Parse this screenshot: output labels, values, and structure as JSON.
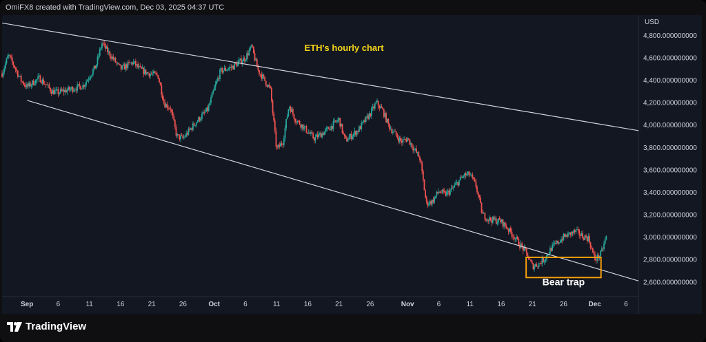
{
  "header": {
    "credit": "OmiFX8 created with TradingView.com, Dec 03, 2025 04:37 UTC"
  },
  "footer": {
    "brand": "TradingView"
  },
  "colors": {
    "background": "#131722",
    "up": "#26a69a",
    "down": "#ef5350",
    "title": "#f5d417",
    "trendline": "#d1d4dc",
    "box": "#f59e0b",
    "axis_text": "#d1d4dc"
  },
  "chart_data": {
    "type": "candlestick",
    "title": "ETH's hourly chart",
    "currency": "USD",
    "y_ticks": [
      4800,
      4600,
      4400,
      4200,
      4000,
      3800,
      3600,
      3400,
      3200,
      3000,
      2800,
      2600
    ],
    "y_tick_labels": [
      "4,800.000000000",
      "4,600.000000000",
      "4,400.000000000",
      "4,200.000000000",
      "4,000.000000000",
      "3,800.000000000",
      "3,600.000000000",
      "3,400.000000000",
      "3,200.000000000",
      "3,000.000000000",
      "2,800.000000000",
      "2,600.000000000"
    ],
    "ylim": [
      2470,
      4980
    ],
    "xlim": [
      "2025-08-28",
      "2025-12-08"
    ],
    "x_ticks": [
      {
        "date": "2025-09-01",
        "label": "Sep",
        "bold": true
      },
      {
        "date": "2025-09-06",
        "label": "6"
      },
      {
        "date": "2025-09-11",
        "label": "11"
      },
      {
        "date": "2025-09-16",
        "label": "16"
      },
      {
        "date": "2025-09-21",
        "label": "21"
      },
      {
        "date": "2025-09-26",
        "label": "26"
      },
      {
        "date": "2025-10-01",
        "label": "Oct",
        "bold": true
      },
      {
        "date": "2025-10-06",
        "label": "6"
      },
      {
        "date": "2025-10-11",
        "label": "11"
      },
      {
        "date": "2025-10-16",
        "label": "16"
      },
      {
        "date": "2025-10-21",
        "label": "21"
      },
      {
        "date": "2025-10-26",
        "label": "26"
      },
      {
        "date": "2025-11-01",
        "label": "Nov",
        "bold": true
      },
      {
        "date": "2025-11-06",
        "label": "6"
      },
      {
        "date": "2025-11-11",
        "label": "11"
      },
      {
        "date": "2025-11-16",
        "label": "16"
      },
      {
        "date": "2025-11-21",
        "label": "21"
      },
      {
        "date": "2025-11-26",
        "label": "26"
      },
      {
        "date": "2025-12-01",
        "label": "Dec",
        "bold": true
      },
      {
        "date": "2025-12-06",
        "label": "6"
      }
    ],
    "price_path": [
      [
        "2025-08-28",
        4460
      ],
      [
        "2025-08-29",
        4620
      ],
      [
        "2025-08-30",
        4520
      ],
      [
        "2025-08-31",
        4400
      ],
      [
        "2025-09-01",
        4340
      ],
      [
        "2025-09-03",
        4420
      ],
      [
        "2025-09-05",
        4300
      ],
      [
        "2025-09-06",
        4290
      ],
      [
        "2025-09-08",
        4320
      ],
      [
        "2025-09-10",
        4350
      ],
      [
        "2025-09-12",
        4520
      ],
      [
        "2025-09-13",
        4730
      ],
      [
        "2025-09-14",
        4650
      ],
      [
        "2025-09-16",
        4500
      ],
      [
        "2025-09-18",
        4560
      ],
      [
        "2025-09-19",
        4500
      ],
      [
        "2025-09-20",
        4470
      ],
      [
        "2025-09-22",
        4440
      ],
      [
        "2025-09-23",
        4190
      ],
      [
        "2025-09-24",
        4150
      ],
      [
        "2025-09-25",
        3900
      ],
      [
        "2025-09-26",
        3880
      ],
      [
        "2025-09-28",
        4020
      ],
      [
        "2025-09-30",
        4140
      ],
      [
        "2025-10-01",
        4320
      ],
      [
        "2025-10-02",
        4480
      ],
      [
        "2025-10-04",
        4520
      ],
      [
        "2025-10-06",
        4600
      ],
      [
        "2025-10-07",
        4700
      ],
      [
        "2025-10-08",
        4490
      ],
      [
        "2025-10-10",
        4320
      ],
      [
        "2025-10-11",
        3780
      ],
      [
        "2025-10-12",
        3850
      ],
      [
        "2025-10-13",
        4180
      ],
      [
        "2025-10-14",
        4050
      ],
      [
        "2025-10-15",
        4000
      ],
      [
        "2025-10-17",
        3880
      ],
      [
        "2025-10-19",
        3950
      ],
      [
        "2025-10-21",
        4050
      ],
      [
        "2025-10-22",
        3860
      ],
      [
        "2025-10-24",
        3950
      ],
      [
        "2025-10-26",
        4100
      ],
      [
        "2025-10-27",
        4200
      ],
      [
        "2025-10-28",
        4130
      ],
      [
        "2025-10-29",
        3990
      ],
      [
        "2025-10-31",
        3850
      ],
      [
        "2025-11-01",
        3880
      ],
      [
        "2025-11-03",
        3700
      ],
      [
        "2025-11-04",
        3300
      ],
      [
        "2025-11-05",
        3320
      ],
      [
        "2025-11-06",
        3410
      ],
      [
        "2025-11-07",
        3380
      ],
      [
        "2025-11-08",
        3420
      ],
      [
        "2025-11-10",
        3550
      ],
      [
        "2025-11-11",
        3560
      ],
      [
        "2025-11-12",
        3450
      ],
      [
        "2025-11-13",
        3200
      ],
      [
        "2025-11-14",
        3160
      ],
      [
        "2025-11-16",
        3140
      ],
      [
        "2025-11-17",
        3080
      ],
      [
        "2025-11-18",
        3010
      ],
      [
        "2025-11-20",
        2860
      ],
      [
        "2025-11-21",
        2740
      ],
      [
        "2025-11-22",
        2760
      ],
      [
        "2025-11-23",
        2810
      ],
      [
        "2025-11-24",
        2900
      ],
      [
        "2025-11-25",
        2950
      ],
      [
        "2025-11-26",
        3000
      ],
      [
        "2025-11-27",
        3030
      ],
      [
        "2025-11-28",
        3050
      ],
      [
        "2025-11-29",
        3010
      ],
      [
        "2025-11-30",
        2990
      ],
      [
        "2025-12-01",
        2800
      ],
      [
        "2025-12-02",
        2850
      ],
      [
        "2025-12-03",
        3030
      ]
    ],
    "trendlines": [
      {
        "name": "upper-trendline",
        "from": [
          "2025-08-28",
          4910
        ],
        "to": [
          "2025-12-08",
          3950
        ]
      },
      {
        "name": "lower-trendline",
        "from": [
          "2025-09-01",
          4220
        ],
        "to": [
          "2025-12-08",
          2610
        ]
      }
    ],
    "annotations": [
      {
        "name": "bear-trap-box",
        "type": "box",
        "from": [
          "2025-11-20",
          2820
        ],
        "to": [
          "2025-12-02",
          2640
        ]
      },
      {
        "name": "bear-trap-label",
        "type": "text",
        "text": "Bear trap",
        "at": [
          "2025-11-26",
          2570
        ]
      }
    ]
  }
}
